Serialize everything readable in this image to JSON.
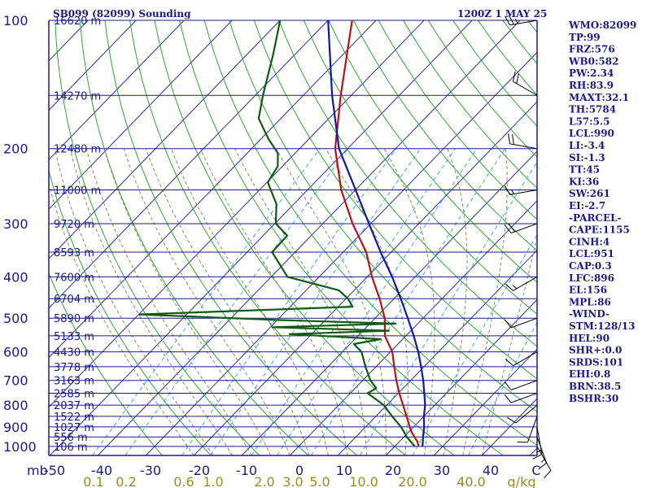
{
  "header": {
    "station": "SB099 (82099) Sounding",
    "time": "1200Z  1 MAY 25"
  },
  "chart_data": {
    "type": "skew-t",
    "pressure_levels": [
      100,
      200,
      300,
      400,
      500,
      600,
      700,
      800,
      900,
      1000
    ],
    "pressure_axis_label": "mb",
    "height_labels": [
      {
        "p": 100,
        "text": "16620 m"
      },
      {
        "p": 150,
        "text": "14270 m"
      },
      {
        "p": 200,
        "text": "12480 m"
      },
      {
        "p": 250,
        "text": "11000 m"
      },
      {
        "p": 300,
        "text": "9720 m"
      },
      {
        "p": 350,
        "text": "8593 m"
      },
      {
        "p": 400,
        "text": "7600 m"
      },
      {
        "p": 450,
        "text": "6704 m"
      },
      {
        "p": 500,
        "text": "5890 m"
      },
      {
        "p": 550,
        "text": "5133 m"
      },
      {
        "p": 600,
        "text": "4430 m"
      },
      {
        "p": 650,
        "text": "3778 m"
      },
      {
        "p": 700,
        "text": "3163 m"
      },
      {
        "p": 750,
        "text": "2585 m"
      },
      {
        "p": 800,
        "text": "2037 m"
      },
      {
        "p": 850,
        "text": "1522 m"
      },
      {
        "p": 900,
        "text": "1027 m"
      },
      {
        "p": 950,
        "text": "556 m"
      },
      {
        "p": 1000,
        "text": "106 m"
      }
    ],
    "temperature_ticks": [
      "-50",
      "-40",
      "-30",
      "-20",
      "-10",
      "0",
      "10",
      "20",
      "30",
      "40"
    ],
    "temperature_unit": "C",
    "mixing_ratio_ticks": [
      "0.1",
      "0.2",
      "0.6",
      "1.0",
      "2.0",
      "3.0",
      "5.0",
      "10.0",
      "20.0",
      "40.0"
    ],
    "mixing_ratio_unit": "g/kg",
    "series": [
      {
        "role": "temperature",
        "color": "#b81414",
        "points": [
          [
            1000,
            25.0
          ],
          [
            975,
            23.8
          ],
          [
            950,
            22.2
          ],
          [
            925,
            20.6
          ],
          [
            900,
            19.2
          ],
          [
            850,
            16.4
          ],
          [
            800,
            13.4
          ],
          [
            750,
            10.2
          ],
          [
            700,
            7.0
          ],
          [
            650,
            3.8
          ],
          [
            600,
            0.4
          ],
          [
            550,
            -4.4
          ],
          [
            500,
            -8.0
          ],
          [
            450,
            -13.0
          ],
          [
            400,
            -19.0
          ],
          [
            350,
            -25.2
          ],
          [
            300,
            -33.8
          ],
          [
            250,
            -43.0
          ],
          [
            200,
            -52.6
          ],
          [
            150,
            -62.2
          ],
          [
            100,
            -75.0
          ]
        ]
      },
      {
        "role": "dewpoint",
        "color": "#0f5a14",
        "points": [
          [
            1000,
            24.2
          ],
          [
            950,
            20.6
          ],
          [
            900,
            17.4
          ],
          [
            850,
            13.4
          ],
          [
            800,
            9.4
          ],
          [
            750,
            3.6
          ],
          [
            730,
            4.4
          ],
          [
            700,
            1.6
          ],
          [
            650,
            -2.2
          ],
          [
            600,
            -6.0
          ],
          [
            575,
            -9.2
          ],
          [
            560,
            -4.6
          ],
          [
            545,
            -24.6
          ],
          [
            535,
            -4.6
          ],
          [
            525,
            -29.6
          ],
          [
            515,
            -4.6
          ],
          [
            505,
            -29.6
          ],
          [
            490,
            -59.8
          ],
          [
            470,
            -17.0
          ],
          [
            450,
            -19.6
          ],
          [
            430,
            -23.2
          ],
          [
            400,
            -36.6
          ],
          [
            350,
            -44.8
          ],
          [
            320,
            -45.0
          ],
          [
            300,
            -49.8
          ],
          [
            270,
            -53.6
          ],
          [
            240,
            -59.8
          ],
          [
            220,
            -61.0
          ],
          [
            205,
            -63.6
          ],
          [
            190,
            -68.4
          ],
          [
            170,
            -74.6
          ],
          [
            150,
            -78.4
          ],
          [
            120,
            -84.6
          ],
          [
            100,
            -90.0
          ]
        ]
      },
      {
        "role": "parcel",
        "color": "#1018a8",
        "points": [
          [
            1000,
            25.8
          ],
          [
            950,
            24.0
          ],
          [
            900,
            22.2
          ],
          [
            850,
            20.0
          ],
          [
            800,
            18.0
          ],
          [
            750,
            15.4
          ],
          [
            700,
            12.6
          ],
          [
            650,
            9.4
          ],
          [
            600,
            5.8
          ],
          [
            550,
            1.6
          ],
          [
            500,
            -3.2
          ],
          [
            450,
            -8.6
          ],
          [
            400,
            -14.8
          ],
          [
            350,
            -22.2
          ],
          [
            300,
            -30.4
          ],
          [
            250,
            -40.0
          ],
          [
            200,
            -51.8
          ],
          [
            150,
            -64.0
          ],
          [
            100,
            -80.0
          ]
        ]
      }
    ],
    "winds": [
      {
        "p": 1000,
        "dir": 150,
        "spd": 10
      },
      {
        "p": 950,
        "dir": 160,
        "spd": 15
      },
      {
        "p": 900,
        "dir": 170,
        "spd": 15
      },
      {
        "p": 850,
        "dir": 200,
        "spd": 10
      },
      {
        "p": 800,
        "dir": 230,
        "spd": 10
      },
      {
        "p": 750,
        "dir": 250,
        "spd": 10
      },
      {
        "p": 700,
        "dir": 250,
        "spd": 10
      },
      {
        "p": 600,
        "dir": 240,
        "spd": 10
      },
      {
        "p": 500,
        "dir": 250,
        "spd": 10
      },
      {
        "p": 400,
        "dir": 240,
        "spd": 15
      },
      {
        "p": 300,
        "dir": 250,
        "spd": 20
      },
      {
        "p": 250,
        "dir": 260,
        "spd": 15
      },
      {
        "p": 200,
        "dir": 280,
        "spd": 20
      },
      {
        "p": 150,
        "dir": 300,
        "spd": 20
      },
      {
        "p": 100,
        "dir": 260,
        "spd": 25
      }
    ],
    "indices": [
      "WMO:82099",
      "TP:99",
      "FRZ:576",
      "WB0:582",
      "PW:2.34",
      "RH:83.9",
      "MAXT:32.1",
      "TH:5784",
      "L57:5.5",
      "LCL:990",
      "LI:-3.4",
      "SI:-1.3",
      "TT:45",
      "KI:36",
      "SW:261",
      "EI:-2.7",
      "-PARCEL-",
      "CAPE:1155",
      "CINH:4",
      "LCL:951",
      "CAP:0.3",
      "LFC:896",
      "EL:156",
      "MPL:86",
      "-WIND-",
      "STM:128/13",
      "HEL:90",
      "SHR+:0.0",
      "SRDS:101",
      "EHI:0.8",
      "BRN:38.5",
      "BSHR:30"
    ]
  }
}
